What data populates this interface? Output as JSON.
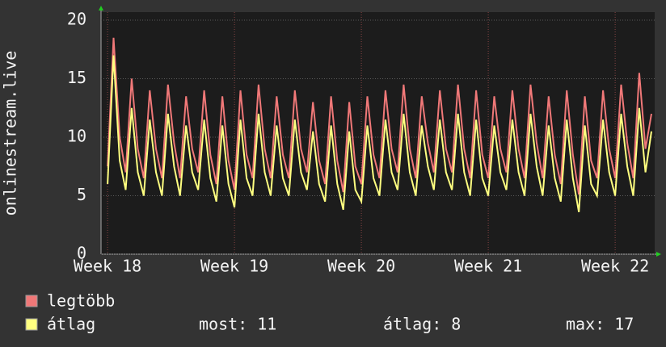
{
  "chart_data": {
    "type": "line",
    "y_label": "onlinestream.live",
    "x": [
      0,
      0.33,
      0.67,
      1,
      1.33,
      1.67,
      2,
      2.33,
      2.67,
      3,
      3.33,
      3.67,
      4,
      4.33,
      4.67,
      5,
      5.33,
      5.67,
      6,
      6.33,
      6.67,
      7,
      7.33,
      7.67,
      8,
      8.33,
      8.67,
      9,
      9.33,
      9.67,
      10,
      10.33,
      10.67,
      11,
      11.33,
      11.67,
      12,
      12.33,
      12.67,
      13,
      13.33,
      13.67,
      14,
      14.33,
      14.67,
      15,
      15.33,
      15.67,
      16,
      16.33,
      16.67,
      17,
      17.33,
      17.67,
      18,
      18.33,
      18.67,
      19,
      19.33,
      19.67,
      20,
      20.33,
      20.67,
      21,
      21.33,
      21.67,
      22,
      22.33,
      22.67,
      23,
      23.33,
      23.67,
      24,
      24.33,
      24.67,
      25,
      25.33,
      25.67,
      26,
      26.33,
      26.67,
      27,
      27.33,
      27.67,
      28,
      28.33,
      28.67,
      29,
      29.33,
      29.67,
      30
    ],
    "series": [
      {
        "name": "legtöbb",
        "color": "#f07878",
        "values": [
          7.5,
          18.5,
          10,
          7,
          15,
          9,
          6.5,
          14,
          9,
          6.5,
          14.5,
          9.5,
          6.5,
          13.5,
          9,
          7,
          14,
          8.5,
          6,
          13.5,
          8,
          5.5,
          14,
          8.5,
          6.5,
          14.5,
          9,
          6.5,
          13.5,
          8.5,
          6.5,
          14,
          9,
          7,
          13,
          8,
          6,
          13.5,
          8,
          5.3,
          13,
          7.5,
          6,
          13.5,
          8.5,
          6.5,
          14,
          9,
          7,
          14.5,
          9,
          6.5,
          13.5,
          9.5,
          7,
          14,
          9,
          7,
          14.5,
          9,
          6.5,
          14,
          8.5,
          6.5,
          13.5,
          9,
          7,
          14,
          9,
          6.5,
          14.5,
          9.5,
          6.5,
          13.5,
          8.5,
          6,
          14,
          8.5,
          5.1,
          13.5,
          8,
          6.5,
          14,
          9,
          6.5,
          14.5,
          9.5,
          6.5,
          15.5,
          9,
          12
        ]
      },
      {
        "name": "átlag",
        "color": "#ffff80",
        "values": [
          6,
          17,
          8,
          5.5,
          12.5,
          7,
          5,
          11.5,
          7,
          5,
          12,
          7.5,
          5,
          11,
          7,
          5.5,
          11.5,
          6.5,
          4.5,
          11,
          6,
          4,
          11.5,
          6.5,
          5,
          12,
          7,
          5,
          11,
          6.5,
          5,
          11.5,
          7,
          5.5,
          10.5,
          6,
          4.5,
          11,
          6,
          3.8,
          10.5,
          5.5,
          4.5,
          11,
          6.5,
          5,
          11.5,
          7,
          5.5,
          12,
          7,
          5,
          11,
          7.5,
          5.5,
          11.5,
          7,
          5.5,
          12,
          7,
          5,
          11.5,
          6.5,
          5,
          11,
          7,
          5.5,
          11.5,
          7,
          5,
          12,
          7.5,
          5,
          11,
          6.5,
          4.5,
          11.5,
          6.5,
          3.6,
          11,
          6,
          5,
          11.5,
          7,
          5,
          12,
          7.5,
          5,
          12.5,
          7,
          10.5
        ]
      }
    ],
    "stats": [
      "most: 11",
      "átlag: 8",
      "max: 17"
    ],
    "xlim": [
      -0.36,
      30.18
    ],
    "xticks": [
      {
        "value": 0,
        "label": "Week 18"
      },
      {
        "value": 7,
        "label": "Week 19"
      },
      {
        "value": 14,
        "label": "Week 20"
      },
      {
        "value": 21,
        "label": "Week 21"
      },
      {
        "value": 28,
        "label": "Week 22"
      }
    ],
    "ylim": [
      0,
      20
    ],
    "yticks": [
      0,
      5,
      10,
      15,
      20
    ],
    "grid": true
  }
}
